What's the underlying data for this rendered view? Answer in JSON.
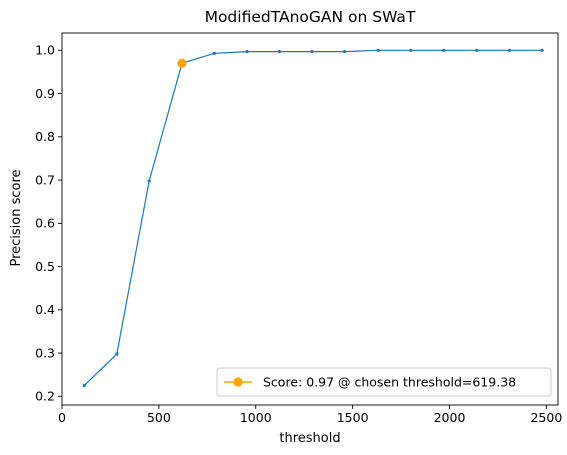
{
  "chart_data": {
    "type": "line",
    "title": "ModifiedTAnoGAN on SWaT",
    "xlabel": "threshold",
    "ylabel": "Precision score",
    "xlim": [
      0,
      2560
    ],
    "ylim": [
      0.18,
      1.04
    ],
    "x_ticks": [
      0,
      500,
      1000,
      1500,
      2000,
      2500
    ],
    "x_tick_labels": [
      "0",
      "500",
      "1000",
      "1500",
      "2000",
      "2500"
    ],
    "y_ticks": [
      0.2,
      0.3,
      0.4,
      0.5,
      0.6,
      0.7,
      0.8,
      0.9,
      1.0
    ],
    "y_tick_labels": [
      "0.2",
      "0.3",
      "0.4",
      "0.5",
      "0.6",
      "0.7",
      "0.8",
      "0.9",
      "1.0"
    ],
    "grid": false,
    "series": [
      {
        "color": "#1f77b4",
        "x": [
          115,
          283,
          450,
          619.38,
          786,
          955,
          1122,
          1290,
          1459,
          1632,
          1800,
          1970,
          2140,
          2310,
          2478
        ],
        "y": [
          0.225,
          0.298,
          0.698,
          0.97,
          0.993,
          0.997,
          0.997,
          0.997,
          0.997,
          1.0,
          1.0,
          1.0,
          1.0,
          1.0,
          1.0
        ]
      }
    ],
    "highlight": {
      "name": "Score: 0.97 @ chosen threshold=619.38",
      "color": "#ffa500",
      "x": 619.38,
      "y": 0.97
    },
    "legend_location": "lower-right"
  }
}
